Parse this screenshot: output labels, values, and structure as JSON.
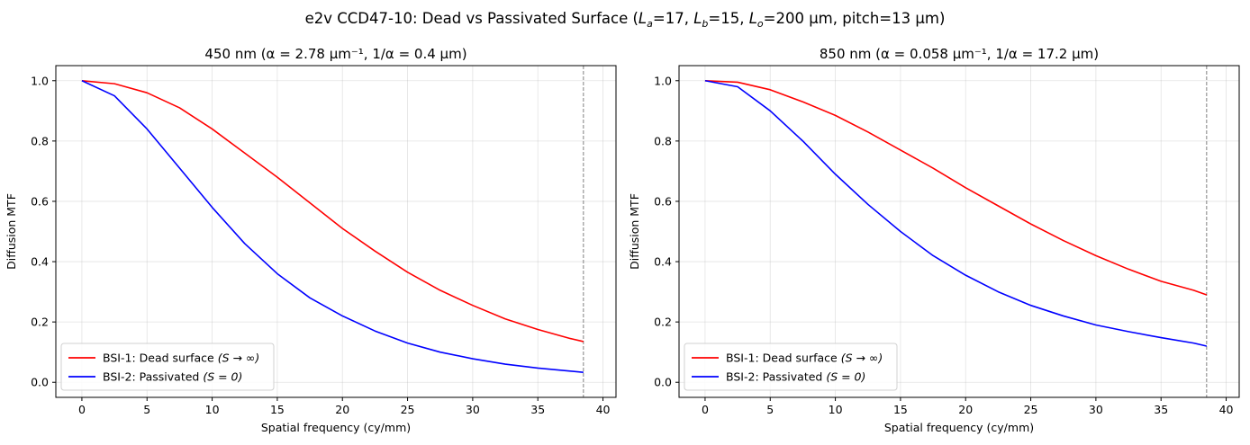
{
  "figure": {
    "suptitle": {
      "prefix": "e2v CCD47-10: Dead vs Passivated Surface (",
      "la_sym": "L",
      "la_sub": "a",
      "la_val": "=17, ",
      "lb_sym": "L",
      "lb_sub": "b",
      "lb_val": "=15, ",
      "lo_sym": "L",
      "lo_sub": "o",
      "lo_val": "=200 µm, pitch=13 µm)"
    }
  },
  "colors": {
    "dead": "#ff0000",
    "passivated": "#0000ff",
    "grid": "#b0b0b0",
    "nyquist": "#808080"
  },
  "chart_data": [
    {
      "type": "line",
      "title": "450 nm (α = 2.78 µm⁻¹, 1/α = 0.4 µm)",
      "xlabel": "Spatial frequency (cy/mm)",
      "ylabel": "Diffusion MTF",
      "xlim": [
        -2,
        41
      ],
      "ylim": [
        -0.05,
        1.05
      ],
      "xticks": [
        0,
        5,
        10,
        15,
        20,
        25,
        30,
        35,
        40
      ],
      "yticks": [
        0.0,
        0.2,
        0.4,
        0.6,
        0.8,
        1.0
      ],
      "grid": true,
      "legend_position": "lower-left",
      "nyquist_line_x": 38.5,
      "x": [
        0,
        2.5,
        5,
        7.5,
        10,
        12.5,
        15,
        17.5,
        20,
        22.5,
        25,
        27.5,
        30,
        32.5,
        35,
        37.5,
        38.5
      ],
      "series": [
        {
          "name": "BSI-1: Dead surface",
          "name_math": "(S → ∞)",
          "color": "#ff0000",
          "values": [
            1.0,
            0.99,
            0.96,
            0.91,
            0.84,
            0.76,
            0.68,
            0.595,
            0.51,
            0.435,
            0.365,
            0.305,
            0.255,
            0.21,
            0.175,
            0.145,
            0.135
          ]
        },
        {
          "name": "BSI-2: Passivated",
          "name_math": "(S = 0)",
          "color": "#0000ff",
          "values": [
            1.0,
            0.95,
            0.84,
            0.71,
            0.58,
            0.46,
            0.36,
            0.28,
            0.22,
            0.17,
            0.13,
            0.1,
            0.078,
            0.06,
            0.047,
            0.037,
            0.033
          ]
        }
      ]
    },
    {
      "type": "line",
      "title": "850 nm (α = 0.058 µm⁻¹, 1/α = 17.2 µm)",
      "xlabel": "Spatial frequency (cy/mm)",
      "ylabel": "Diffusion MTF",
      "xlim": [
        -2,
        41
      ],
      "ylim": [
        -0.05,
        1.05
      ],
      "xticks": [
        0,
        5,
        10,
        15,
        20,
        25,
        30,
        35,
        40
      ],
      "yticks": [
        0.0,
        0.2,
        0.4,
        0.6,
        0.8,
        1.0
      ],
      "grid": true,
      "legend_position": "lower-left",
      "nyquist_line_x": 38.5,
      "x": [
        0,
        2.5,
        5,
        7.5,
        10,
        12.5,
        15,
        17.5,
        20,
        22.5,
        25,
        27.5,
        30,
        32.5,
        35,
        37.5,
        38.5
      ],
      "series": [
        {
          "name": "BSI-1: Dead surface",
          "name_math": "(S → ∞)",
          "color": "#ff0000",
          "values": [
            1.0,
            0.995,
            0.97,
            0.93,
            0.885,
            0.83,
            0.77,
            0.71,
            0.645,
            0.585,
            0.525,
            0.47,
            0.42,
            0.375,
            0.335,
            0.305,
            0.29
          ]
        },
        {
          "name": "BSI-2: Passivated",
          "name_math": "(S = 0)",
          "color": "#0000ff",
          "values": [
            1.0,
            0.98,
            0.9,
            0.8,
            0.69,
            0.59,
            0.5,
            0.42,
            0.355,
            0.3,
            0.255,
            0.22,
            0.19,
            0.168,
            0.148,
            0.13,
            0.12
          ]
        }
      ]
    }
  ]
}
